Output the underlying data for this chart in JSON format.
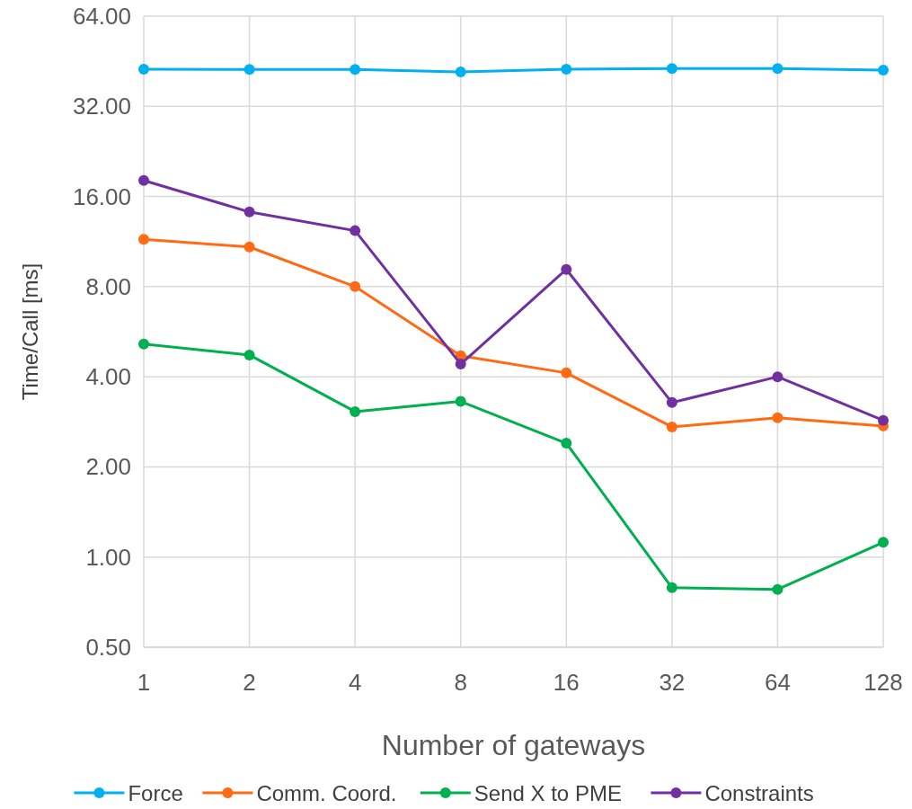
{
  "chart_data": {
    "type": "line",
    "xlabel": "Number of gateways",
    "ylabel": "Time/Call [ms]",
    "categories": [
      "1",
      "2",
      "4",
      "8",
      "16",
      "32",
      "64",
      "128"
    ],
    "log": "y",
    "ylim": [
      0.5,
      64
    ],
    "yticks": [
      {
        "value": 0.5,
        "label": "0.50"
      },
      {
        "value": 1,
        "label": "1.00"
      },
      {
        "value": 2,
        "label": "2.00"
      },
      {
        "value": 4,
        "label": "4.00"
      },
      {
        "value": 8,
        "label": "8.00"
      },
      {
        "value": 16,
        "label": "16.00"
      },
      {
        "value": 32,
        "label": "32.00"
      },
      {
        "value": 64,
        "label": "64.00"
      }
    ],
    "grid": true,
    "legend": "bottom",
    "marker": "circle",
    "line_style": "solid",
    "series": [
      {
        "name": "Force",
        "color": "#00b0f0",
        "values": [
          42.6,
          42.5,
          42.5,
          41.7,
          42.6,
          42.8,
          42.8,
          42.3
        ]
      },
      {
        "name": "Comm. Coord.",
        "color": "#ff6a13",
        "values": [
          11.5,
          10.85,
          8.0,
          4.7,
          4.12,
          2.72,
          2.92,
          2.74
        ]
      },
      {
        "name": "Send X to PME",
        "color": "#00b050",
        "values": [
          5.14,
          4.73,
          3.06,
          3.31,
          2.4,
          0.79,
          0.78,
          1.12
        ]
      },
      {
        "name": "Constraints",
        "color": "#7030a0",
        "values": [
          18.1,
          14.2,
          12.3,
          4.41,
          9.13,
          3.28,
          4.0,
          2.86
        ]
      }
    ]
  }
}
